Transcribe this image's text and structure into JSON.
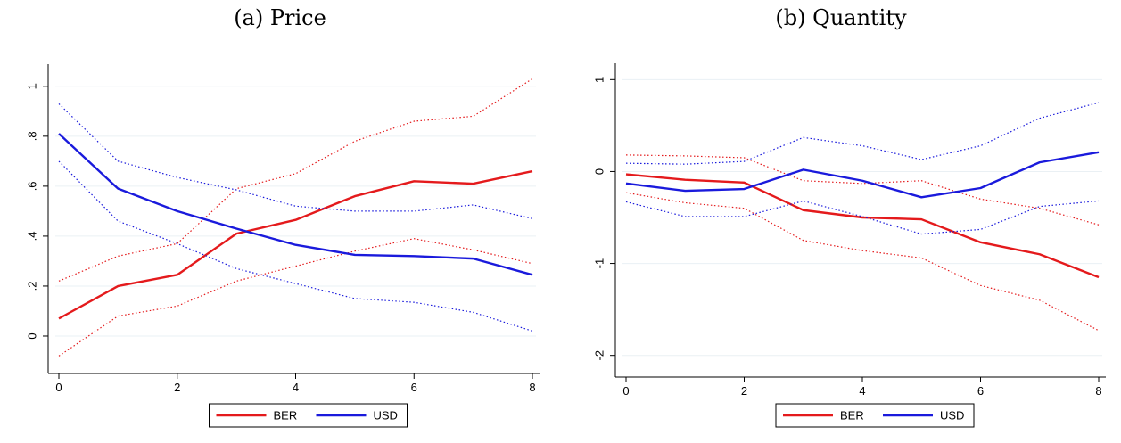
{
  "chart_data": [
    {
      "type": "line",
      "title": "(a) Price",
      "xlabel": "",
      "ylabel": "",
      "x": [
        0,
        1,
        2,
        3,
        4,
        5,
        6,
        7,
        8
      ],
      "xlim": [
        0,
        8
      ],
      "ylim": [
        -0.1,
        1.06
      ],
      "xticks": [
        0,
        2,
        4,
        6,
        8
      ],
      "xtick_labels": [
        "0",
        "2",
        "4",
        "6",
        "8"
      ],
      "yticks": [
        0,
        0.2,
        0.4,
        0.6,
        0.8,
        1
      ],
      "ytick_labels": [
        "0",
        ".2",
        ".4",
        ".6",
        ".8",
        "1"
      ],
      "grid": true,
      "legend_position": "bottom-center",
      "series": [
        {
          "name": "BER",
          "color": "#e41a1c",
          "style": "solid",
          "values": [
            0.07,
            0.2,
            0.245,
            0.41,
            0.465,
            0.56,
            0.62,
            0.61,
            0.66
          ]
        },
        {
          "color": "#e41a1c",
          "style": "dotted",
          "values": [
            0.22,
            0.32,
            0.37,
            0.59,
            0.65,
            0.78,
            0.86,
            0.88,
            1.03
          ]
        },
        {
          "color": "#e41a1c",
          "style": "dotted",
          "values": [
            -0.08,
            0.08,
            0.12,
            0.22,
            0.28,
            0.34,
            0.39,
            0.345,
            0.29
          ]
        },
        {
          "name": "USD",
          "color": "#1a1adc",
          "style": "solid",
          "values": [
            0.81,
            0.59,
            0.5,
            0.43,
            0.365,
            0.325,
            0.32,
            0.31,
            0.245
          ]
        },
        {
          "color": "#1a1adc",
          "style": "dotted",
          "values": [
            0.93,
            0.7,
            0.635,
            0.585,
            0.52,
            0.5,
            0.5,
            0.525,
            0.47
          ]
        },
        {
          "color": "#1a1adc",
          "style": "dotted",
          "values": [
            0.7,
            0.46,
            0.37,
            0.27,
            0.21,
            0.15,
            0.135,
            0.095,
            0.02
          ]
        }
      ]
    },
    {
      "type": "line",
      "title": "(b) Quantity",
      "xlabel": "",
      "ylabel": "",
      "x": [
        0,
        1,
        2,
        3,
        4,
        5,
        6,
        7,
        8
      ],
      "xlim": [
        0,
        8
      ],
      "ylim": [
        -2.1,
        1.1
      ],
      "xticks": [
        0,
        2,
        4,
        6,
        8
      ],
      "xtick_labels": [
        "0",
        "2",
        "4",
        "6",
        "8"
      ],
      "yticks": [
        -2,
        -1,
        0,
        1
      ],
      "ytick_labels": [
        "-2",
        "-1",
        "0",
        "1"
      ],
      "grid": true,
      "legend_position": "bottom-center",
      "series": [
        {
          "name": "BER",
          "color": "#e41a1c",
          "style": "solid",
          "values": [
            -0.03,
            -0.09,
            -0.12,
            -0.42,
            -0.5,
            -0.52,
            -0.77,
            -0.9,
            -1.15
          ]
        },
        {
          "color": "#e41a1c",
          "style": "dotted",
          "values": [
            0.18,
            0.17,
            0.15,
            -0.1,
            -0.13,
            -0.1,
            -0.3,
            -0.4,
            -0.58
          ]
        },
        {
          "color": "#e41a1c",
          "style": "dotted",
          "values": [
            -0.23,
            -0.34,
            -0.4,
            -0.75,
            -0.86,
            -0.94,
            -1.24,
            -1.4,
            -1.73
          ]
        },
        {
          "name": "USD",
          "color": "#1a1adc",
          "style": "solid",
          "values": [
            -0.13,
            -0.21,
            -0.19,
            0.02,
            -0.1,
            -0.28,
            -0.18,
            0.1,
            0.21
          ]
        },
        {
          "color": "#1a1adc",
          "style": "dotted",
          "values": [
            0.09,
            0.08,
            0.11,
            0.37,
            0.28,
            0.13,
            0.28,
            0.58,
            0.75
          ]
        },
        {
          "color": "#1a1adc",
          "style": "dotted",
          "values": [
            -0.33,
            -0.49,
            -0.49,
            -0.32,
            -0.49,
            -0.68,
            -0.63,
            -0.38,
            -0.32
          ]
        }
      ]
    }
  ]
}
